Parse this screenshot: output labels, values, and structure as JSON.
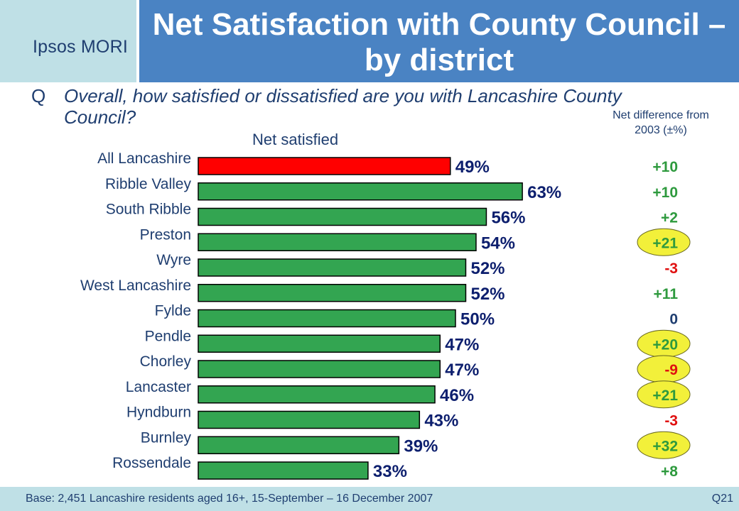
{
  "logo": "Ipsos MORI",
  "title": "Net Satisfaction with County Council – by district",
  "question": {
    "letter": "Q",
    "text": "Overall, how satisfied or dissatisfied are you with Lancashire County Council?"
  },
  "chart_data": {
    "type": "bar",
    "orientation": "horizontal",
    "subtitle": "Net satisfied",
    "categories": [
      "All Lancashire",
      "Ribble Valley",
      "South Ribble",
      "Preston",
      "Wyre",
      "West Lancashire",
      "Fylde",
      "Pendle",
      "Chorley",
      "Lancaster",
      "Hyndburn",
      "Burnley",
      "Rossendale"
    ],
    "values": [
      49,
      63,
      56,
      54,
      52,
      52,
      50,
      47,
      47,
      46,
      43,
      39,
      33
    ],
    "value_labels": [
      "49%",
      "63%",
      "56%",
      "54%",
      "52%",
      "52%",
      "50%",
      "47%",
      "47%",
      "46%",
      "43%",
      "39%",
      "33%"
    ],
    "bar_colors": [
      "#ff0000",
      "#33a551",
      "#33a551",
      "#33a551",
      "#33a551",
      "#33a551",
      "#33a551",
      "#33a551",
      "#33a551",
      "#33a551",
      "#33a551",
      "#33a551",
      "#33a551"
    ],
    "net_difference_header": "Net difference from 2003 (±%)",
    "net_difference": [
      "+10",
      "+10",
      "+2",
      "+21",
      "-3",
      "+11",
      "0",
      "+20",
      "-9",
      "+21",
      "-3",
      "+32",
      "+8"
    ],
    "net_difference_highlighted": [
      false,
      false,
      false,
      true,
      false,
      false,
      false,
      true,
      true,
      true,
      false,
      true,
      false
    ],
    "colors": {
      "positive": "#2e9a3e",
      "negative": "#e01010",
      "zero": "#1f3e70",
      "highlight": "#f2f03a"
    }
  },
  "footer": {
    "base": "Base: 2,451 Lancashire residents aged 16+, 15-September – 16 December 2007",
    "ref": "Q21"
  }
}
